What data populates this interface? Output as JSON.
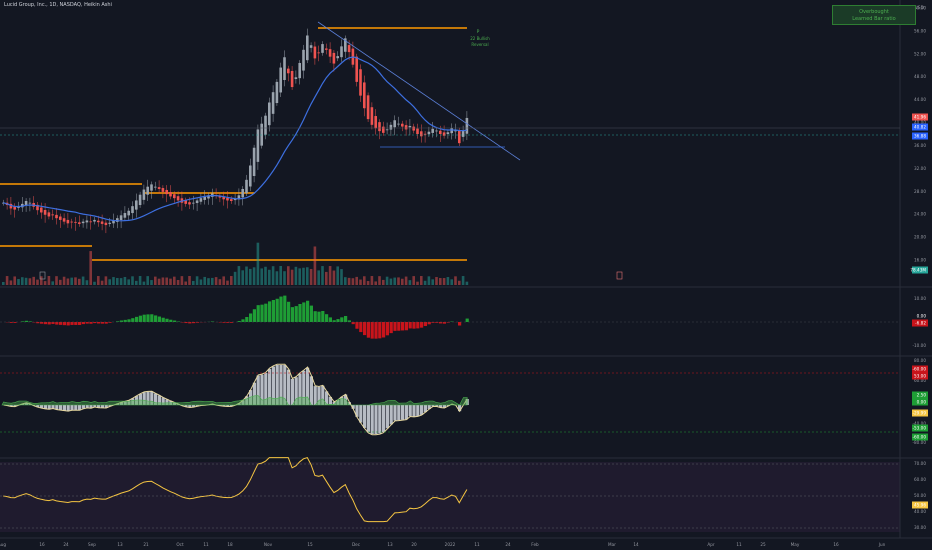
{
  "header": {
    "symbol_title": "Lucid Group, Inc., 1D, NASDAQ, Heikin Ashi"
  },
  "info_box": {
    "line1": "Overbought",
    "line2": "Learned Bar ratio"
  },
  "annotations": {
    "pivot_label": "P",
    "pivot_sub1": "22 Bullish",
    "pivot_sub2": "Reversal"
  },
  "currency": "USD",
  "colors": {
    "background": "#131722",
    "up": "#9aa3ad",
    "down": "#ef5350",
    "orange": "#ff9800",
    "blue_ma": "#2962ff",
    "trend": "#5b7fd6",
    "green_bar": "#1e9e35",
    "red_bar": "#c8141b",
    "rsi_line": "#f5c542"
  },
  "price_axis": [
    "60.00",
    "56.00",
    "52.00",
    "48.00",
    "44.00",
    "40.00",
    "36.00",
    "32.00",
    "28.00",
    "24.00",
    "20.00",
    "16.00"
  ],
  "price_tags": [
    {
      "text": "41.96",
      "color": "#ef5350"
    },
    {
      "text": "40.82",
      "color": "#2962ff"
    },
    {
      "text": "36.88",
      "color": "#2962ff"
    },
    {
      "text": "78.43M",
      "color": "#26a69a"
    }
  ],
  "osc1_axis": [
    "10.00",
    "0.00",
    "-10.00"
  ],
  "osc1_tags": [
    {
      "text": "0.00",
      "color": "#131722"
    },
    {
      "text": "-6.82",
      "color": "#c8141b"
    }
  ],
  "osc2_axis": [
    "80.00",
    "60.00",
    "20.00",
    "0.00",
    "-20.00",
    "-40.00",
    "-80.00"
  ],
  "osc2_tags": [
    {
      "text": "-60.00",
      "color": "#c8141b"
    },
    {
      "text": "53.00",
      "color": "#c8141b"
    },
    {
      "text": "2.50",
      "color": "#1e9e35"
    },
    {
      "text": "0.00",
      "color": "#1e9e35"
    },
    {
      "text": "-29.99",
      "color": "#f5c542"
    },
    {
      "text": "-53.00",
      "color": "#1e9e35"
    },
    {
      "text": "-60.00",
      "color": "#1e9e35"
    }
  ],
  "rsi_axis": [
    "70.00",
    "60.00",
    "50.00",
    "40.00",
    "30.00"
  ],
  "rsi_tags": [
    {
      "text": "45.96",
      "color": "#f5c542"
    }
  ],
  "time_axis": [
    "Aug",
    "16",
    "24",
    "Sep",
    "13",
    "21",
    "Oct",
    "11",
    "18",
    "Nov",
    "15",
    "Dec",
    "13",
    "20",
    "2022",
    "11",
    "24",
    "Feb",
    "Mar",
    "14",
    "Apr",
    "11",
    "25",
    "May",
    "16",
    "Jun"
  ],
  "chart_data": {
    "type": "candlestick",
    "closes": [
      26.0,
      25.6,
      25.0,
      24.8,
      25.3,
      25.8,
      26.3,
      26.0,
      25.3,
      24.7,
      24.3,
      23.9,
      23.6,
      23.8,
      23.3,
      23.0,
      22.7,
      22.4,
      22.6,
      22.5,
      22.3,
      22.7,
      22.9,
      22.7,
      23.0,
      22.6,
      22.3,
      22.1,
      22.5,
      22.9,
      23.3,
      23.8,
      24.2,
      24.6,
      25.4,
      26.4,
      27.4,
      28.3,
      28.8,
      29.2,
      28.8,
      28.4,
      27.9,
      27.5,
      27.1,
      26.8,
      26.4,
      26.0,
      25.8,
      25.7,
      26.0,
      26.4,
      26.8,
      27.0,
      27.3,
      27.6,
      27.2,
      26.9,
      26.6,
      26.4,
      26.3,
      26.7,
      27.3,
      28.4,
      30.0,
      32.5,
      35.6,
      38.8,
      39.8,
      41.2,
      43.5,
      45.3,
      47.1,
      49.6,
      51.4,
      48.6,
      46.2,
      47.9,
      50.4,
      52.7,
      55.2,
      53.5,
      51.2,
      52.1,
      53.7,
      52.7,
      51.5,
      50.3,
      51.6,
      53.3,
      54.7,
      52.3,
      50.1,
      47.1,
      44.7,
      42.5,
      40.6,
      39.6,
      39.0,
      38.5,
      38.2,
      38.8,
      39.6,
      40.4,
      39.8,
      39.3,
      38.8,
      39.4,
      38.6,
      38.0,
      37.6,
      37.9,
      38.4,
      38.9,
      38.6,
      38.0,
      37.7,
      38.3,
      39.0,
      38.6,
      36.4,
      38.6,
      40.8
    ],
    "volume_label": "78.43M",
    "trendline": "descending from Nov peak",
    "ma_color": "blue"
  }
}
